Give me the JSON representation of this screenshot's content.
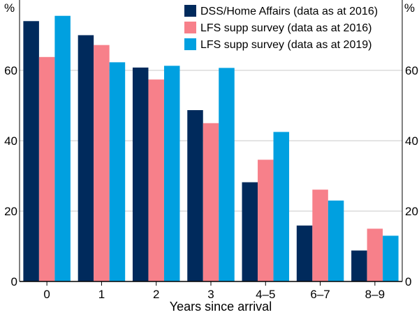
{
  "chart_data": {
    "type": "bar",
    "title": "",
    "xlabel": "Years since arrival",
    "ylabel": "%",
    "ylabel_right": "%",
    "ylim": [
      0,
      80
    ],
    "yticks": [
      0,
      20,
      40,
      60
    ],
    "ytick_labels": [
      "0",
      "20",
      "40",
      "60"
    ],
    "grid": true,
    "legend_position": "top-right",
    "categories": [
      "0",
      "1",
      "2",
      "3",
      "4–5",
      "6–7",
      "8–9"
    ],
    "series": [
      {
        "name": "DSS/Home Affairs (data as at 2016)",
        "color": "#002a5c",
        "values": [
          74,
          70,
          60.8,
          48.7,
          28.2,
          15.9,
          8.8
        ]
      },
      {
        "name": "LFS supp survey (data as at 2016)",
        "color": "#f7808a",
        "values": [
          63.8,
          67.2,
          57.4,
          45,
          34.6,
          26.1,
          15
        ]
      },
      {
        "name": "LFS supp survey (data as at 2019)",
        "color": "#00a0e0",
        "values": [
          75.5,
          62.3,
          61.3,
          60.7,
          42.5,
          23,
          13
        ]
      }
    ]
  }
}
